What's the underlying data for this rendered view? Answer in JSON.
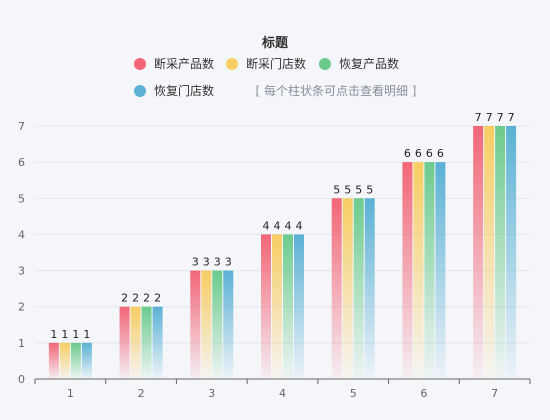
{
  "chart_data": {
    "type": "bar",
    "title": "标题",
    "hint": "[ 每个柱状条可点击查看明细 ]",
    "categories": [
      "1",
      "2",
      "3",
      "4",
      "5",
      "6",
      "7"
    ],
    "ylim": [
      0,
      7
    ],
    "yticks": [
      0,
      1,
      2,
      3,
      4,
      5,
      6,
      7
    ],
    "grid": true,
    "legend_position": "top",
    "series": [
      {
        "name": "断采产品数",
        "color": "#f16677",
        "values": [
          1,
          2,
          3,
          4,
          5,
          6,
          7
        ]
      },
      {
        "name": "断采门店数",
        "color": "#f7cd63",
        "values": [
          1,
          2,
          3,
          4,
          5,
          6,
          7
        ]
      },
      {
        "name": "恢复产品数",
        "color": "#6ccb8c",
        "values": [
          1,
          2,
          3,
          4,
          5,
          6,
          7
        ]
      },
      {
        "name": "恢复门店数",
        "color": "#5ab1d4",
        "values": [
          1,
          2,
          3,
          4,
          5,
          6,
          7
        ]
      }
    ]
  }
}
